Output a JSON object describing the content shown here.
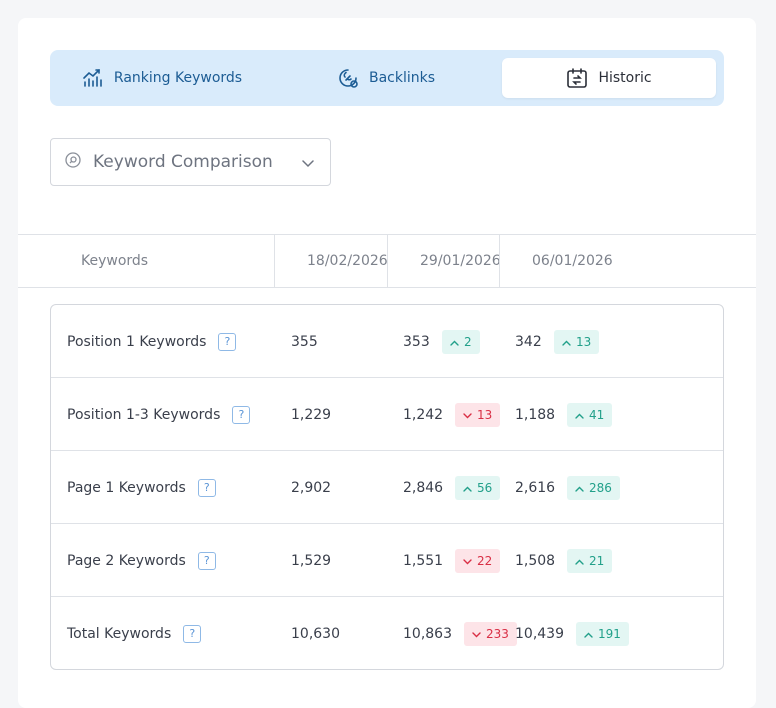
{
  "tabs": [
    {
      "label": "Ranking Keywords",
      "icon": "ranking-chart-icon",
      "active": false
    },
    {
      "label": "Backlinks",
      "icon": "link-gear-icon",
      "active": false
    },
    {
      "label": "Historic",
      "icon": "calendar-refresh-icon",
      "active": true
    }
  ],
  "dropdown": {
    "label": "Keyword Comparison",
    "icon": "search-circle-icon"
  },
  "header": {
    "col_keywords": "Keywords",
    "dates": [
      "18/02/2026",
      "29/01/2026",
      "06/01/2026"
    ]
  },
  "rows": [
    {
      "name": "Position 1 Keywords",
      "help": "?",
      "v1": "355",
      "v2": "353",
      "d2": "2",
      "d2dir": "up",
      "v3": "342",
      "d3": "13",
      "d3dir": "up"
    },
    {
      "name": "Position 1-3 Keywords",
      "help": "?",
      "v1": "1,229",
      "v2": "1,242",
      "d2": "13",
      "d2dir": "down",
      "v3": "1,188",
      "d3": "41",
      "d3dir": "up"
    },
    {
      "name": "Page 1 Keywords",
      "help": "?",
      "v1": "2,902",
      "v2": "2,846",
      "d2": "56",
      "d2dir": "up",
      "v3": "2,616",
      "d3": "286",
      "d3dir": "up"
    },
    {
      "name": "Page 2 Keywords",
      "help": "?",
      "v1": "1,529",
      "v2": "1,551",
      "d2": "22",
      "d2dir": "down",
      "v3": "1,508",
      "d3": "21",
      "d3dir": "up"
    },
    {
      "name": "Total Keywords",
      "help": "?",
      "v1": "10,630",
      "v2": "10,863",
      "d2": "233",
      "d2dir": "down",
      "v3": "10,439",
      "d3": "191",
      "d3dir": "up"
    }
  ],
  "colors": {
    "up": "#22a08a",
    "down": "#d92f45",
    "accent": "#1c5c94"
  }
}
